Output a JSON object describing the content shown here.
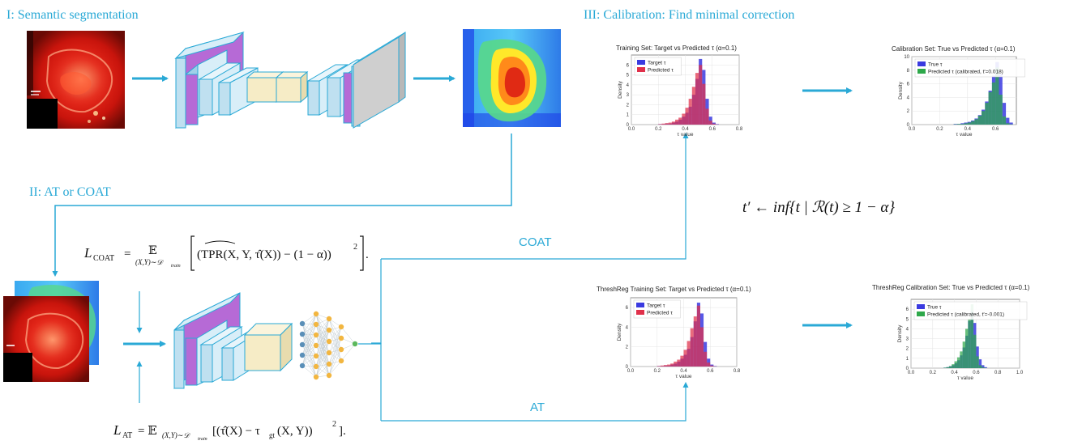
{
  "sections": {
    "segmentation": "I: Semantic segmentation",
    "training": "II: AT or COAT",
    "calibration": "III: Calibration: Find minimal correction"
  },
  "flows": {
    "coat": "COAT",
    "at": "AT"
  },
  "equations": {
    "coat_lhs": "L",
    "coat_lhs_sub": "COAT",
    "coat_eq": "=",
    "coat_expect": "𝔼",
    "coat_expect_sub": "(X,Y)∼𝒟",
    "coat_expect_subsub": "train",
    "coat_body": "(TPR(X, Y, τ̂(X)) − (1 − α))",
    "coat_sup": "2",
    "coat_end": ".",
    "at_lhs": "L",
    "at_lhs_sub": "AT",
    "at_eq": "= 𝔼",
    "at_expect_sub": "(X,Y)∼𝒟",
    "at_expect_subsub": "train",
    "at_body": "[(τ̂(X) − τ",
    "at_body_sub": "gt",
    "at_body2": "(X, Y))",
    "at_sup": "2",
    "at_end": "].",
    "calibration": "t′ ← inf{t | ℛ(t) ≥ 1 − α}"
  },
  "colors": {
    "accent": "#2aa9d6",
    "target": "#3a3ae0",
    "predicted": "#e0304a",
    "calibrated": "#2ea84a",
    "layer_blue": "#bfe0f0",
    "layer_purple": "#b66ad6",
    "layer_yellow": "#f6ecc6",
    "layer_gray": "#cfcfcf"
  },
  "chart_data": [
    {
      "type": "bar",
      "title": "Training Set: Target vs Predicted τ (α=0.1)",
      "xlabel": "τ value",
      "ylabel": "Density",
      "xlim": [
        0.0,
        0.8
      ],
      "ylim": [
        0,
        7
      ],
      "xticks": [
        "0.0",
        "0.2",
        "0.4",
        "0.6",
        "0.8"
      ],
      "yticks": [
        "0",
        "1",
        "2",
        "3",
        "4",
        "5",
        "6"
      ],
      "legend_position": "top-left",
      "bin_edges_start": 0.2,
      "bin_width": 0.025,
      "series": [
        {
          "name": "Target τ",
          "color": "#3a3ae0",
          "values": [
            0.05,
            0.05,
            0.1,
            0.1,
            0.2,
            0.3,
            0.5,
            0.8,
            1.2,
            1.8,
            3.0,
            4.6,
            6.6,
            5.5,
            2.6,
            0.8,
            0.2,
            0.05
          ]
        },
        {
          "name": "Predicted τ",
          "color": "#e0304a",
          "values": [
            0.05,
            0.1,
            0.15,
            0.2,
            0.3,
            0.5,
            0.7,
            1.1,
            1.7,
            2.6,
            3.8,
            5.2,
            6.0,
            4.1,
            1.6,
            0.4,
            0.1,
            0.02
          ]
        }
      ]
    },
    {
      "type": "bar",
      "title": "Calibration Set: True vs Predicted τ (α=0.1)",
      "xlabel": "τ value",
      "ylabel": "Density",
      "xlim": [
        0.0,
        0.75
      ],
      "ylim": [
        0,
        10
      ],
      "xticks": [
        "0.0",
        "0.2",
        "0.4",
        "0.6"
      ],
      "yticks": [
        "0",
        "2",
        "4",
        "6",
        "8",
        "10"
      ],
      "legend_position": "top-left",
      "bin_edges_start": 0.3,
      "bin_width": 0.025,
      "series": [
        {
          "name": "True τ",
          "color": "#3a3ae0",
          "values": [
            0.1,
            0.1,
            0.2,
            0.3,
            0.4,
            0.6,
            0.9,
            1.4,
            2.2,
            3.4,
            5.0,
            7.2,
            9.2,
            7.4,
            3.2,
            1.0,
            0.3
          ]
        },
        {
          "name": "Predicted τ (calibrated, t′=0.018)",
          "color": "#2ea84a",
          "values": [
            0.05,
            0.1,
            0.1,
            0.2,
            0.3,
            0.5,
            0.8,
            1.3,
            2.0,
            3.2,
            4.8,
            6.2,
            8.4,
            4.4,
            1.2,
            0.2,
            0.05
          ]
        }
      ]
    },
    {
      "type": "bar",
      "title": "ThreshReg Training Set: Target vs Predicted τ (α=0.1)",
      "xlabel": "τ value",
      "ylabel": "Density",
      "xlim": [
        0.0,
        0.8
      ],
      "ylim": [
        0,
        7
      ],
      "xticks": [
        "0.0",
        "0.2",
        "0.4",
        "0.6",
        "0.8"
      ],
      "yticks": [
        "0",
        "2",
        "4",
        "6"
      ],
      "legend_position": "top-left",
      "bin_edges_start": 0.2,
      "bin_width": 0.025,
      "series": [
        {
          "name": "Target τ",
          "color": "#3a3ae0",
          "values": [
            0.05,
            0.05,
            0.1,
            0.1,
            0.2,
            0.3,
            0.5,
            0.8,
            1.2,
            1.8,
            3.0,
            4.6,
            6.5,
            5.4,
            2.5,
            0.8,
            0.2,
            0.05
          ]
        },
        {
          "name": "Predicted τ",
          "color": "#e0304a",
          "values": [
            0.05,
            0.1,
            0.15,
            0.2,
            0.3,
            0.5,
            0.7,
            1.1,
            1.7,
            2.6,
            3.9,
            5.1,
            6.2,
            4.0,
            1.5,
            0.4,
            0.1,
            0.02
          ]
        }
      ]
    },
    {
      "type": "bar",
      "title": "ThreshReg Calibration Set: True vs Predicted τ (α=0.1)",
      "xlabel": "τ value",
      "ylabel": "Density",
      "xlim": [
        0.0,
        1.0
      ],
      "ylim": [
        0,
        7
      ],
      "xticks": [
        "0.0",
        "0.2",
        "0.4",
        "0.6",
        "0.8",
        "1.0"
      ],
      "yticks": [
        "0",
        "1",
        "2",
        "3",
        "4",
        "5",
        "6"
      ],
      "legend_position": "top-left",
      "bin_edges_start": 0.3,
      "bin_width": 0.025,
      "series": [
        {
          "name": "True τ",
          "color": "#3a3ae0",
          "values": [
            0.05,
            0.1,
            0.2,
            0.3,
            0.5,
            0.8,
            1.3,
            2.1,
            3.3,
            4.8,
            5.8,
            4.6,
            2.2,
            0.9,
            0.3,
            0.1
          ]
        },
        {
          "name": "Predicted τ (calibrated, t′=-0.001)",
          "color": "#2ea84a",
          "values": [
            0.05,
            0.1,
            0.2,
            0.4,
            0.7,
            1.1,
            1.7,
            2.7,
            4.0,
            5.0,
            6.5,
            3.4,
            1.2,
            0.3,
            0.1,
            0.02
          ]
        }
      ]
    }
  ]
}
